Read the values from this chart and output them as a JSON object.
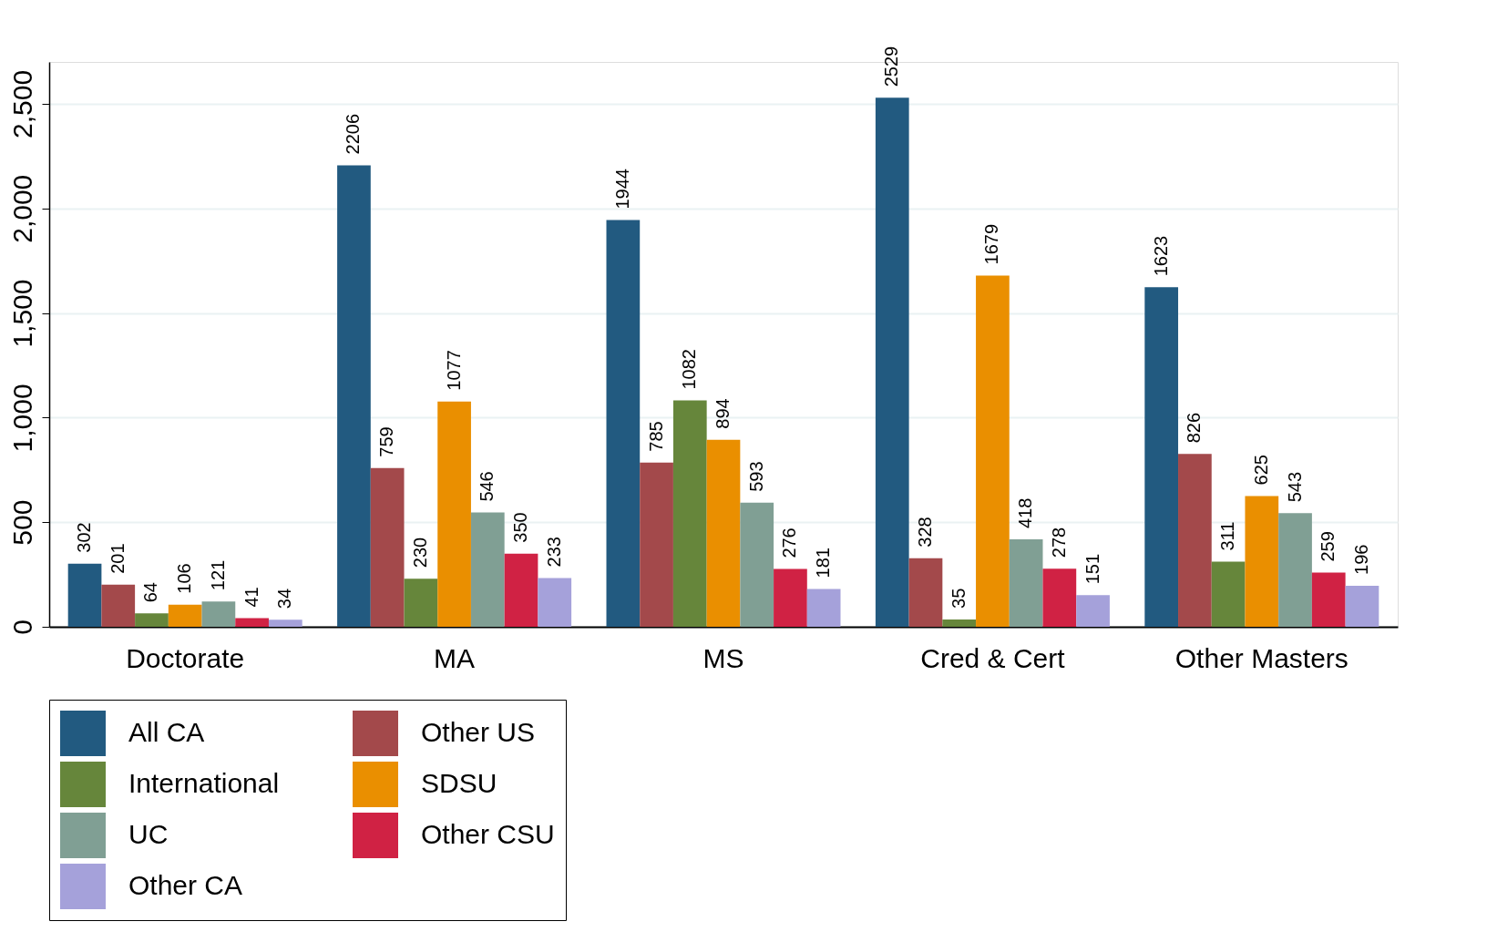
{
  "chart_data": {
    "type": "bar",
    "categories": [
      "Doctorate",
      "MA",
      "MS",
      "Cred & Cert",
      "Other Masters"
    ],
    "series": [
      {
        "name": "All CA",
        "color": "#225a80",
        "values": [
          302,
          2206,
          1944,
          2529,
          1623
        ]
      },
      {
        "name": "Other US",
        "color": "#a3494b",
        "values": [
          201,
          759,
          785,
          328,
          826
        ]
      },
      {
        "name": "International",
        "color": "#66863b",
        "values": [
          64,
          230,
          1082,
          35,
          311
        ]
      },
      {
        "name": "SDSU",
        "color": "#ea8f00",
        "values": [
          106,
          1077,
          894,
          1679,
          625
        ]
      },
      {
        "name": "UC",
        "color": "#809f94",
        "values": [
          121,
          546,
          593,
          418,
          543
        ]
      },
      {
        "name": "Other CSU",
        "color": "#d02244",
        "values": [
          41,
          350,
          276,
          278,
          259
        ]
      },
      {
        "name": "Other CA",
        "color": "#a5a1da",
        "values": [
          34,
          233,
          181,
          151,
          196
        ]
      }
    ],
    "ylim": [
      0,
      2700
    ],
    "yticks": [
      {
        "value": 0,
        "label": "0"
      },
      {
        "value": 500,
        "label": "500"
      },
      {
        "value": 1000,
        "label": "1,000"
      },
      {
        "value": 1500,
        "label": "1,500"
      },
      {
        "value": 2000,
        "label": "2,000"
      },
      {
        "value": 2500,
        "label": "2,500"
      }
    ],
    "grid": "y",
    "legend": "bottom",
    "data_labels": true
  }
}
